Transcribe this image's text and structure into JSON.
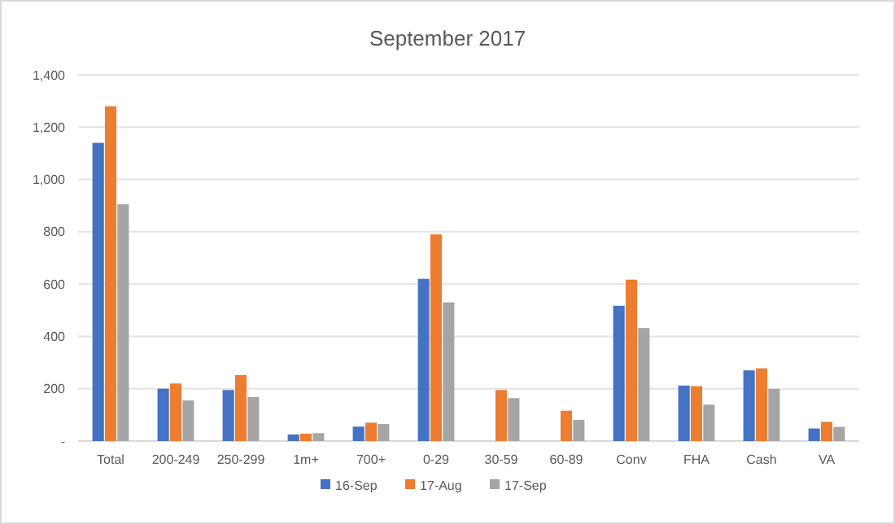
{
  "chart_data": {
    "type": "bar",
    "title": "September 2017",
    "categories": [
      "Total",
      "200-249",
      "250-299",
      "1m+",
      "700+",
      "0-29",
      "30-59",
      "60-89",
      "Conv",
      "FHA",
      "Cash",
      "VA"
    ],
    "series": [
      {
        "name": "16-Sep",
        "color": "#4472c4",
        "values": [
          1140,
          200,
          195,
          25,
          55,
          620,
          null,
          null,
          517,
          212,
          270,
          48
        ]
      },
      {
        "name": "17-Aug",
        "color": "#ed7d31",
        "values": [
          1280,
          220,
          252,
          28,
          70,
          790,
          195,
          116,
          617,
          210,
          278,
          73
        ]
      },
      {
        "name": "17-Sep",
        "color": "#a5a5a5",
        "values": [
          905,
          155,
          168,
          30,
          65,
          530,
          164,
          81,
          432,
          139,
          199,
          54
        ]
      }
    ],
    "ylim": [
      0,
      1400
    ],
    "yticks": [
      {
        "value": 0,
        "label": "-"
      },
      {
        "value": 200,
        "label": "200"
      },
      {
        "value": 400,
        "label": "400"
      },
      {
        "value": 600,
        "label": "600"
      },
      {
        "value": 800,
        "label": "800"
      },
      {
        "value": 1000,
        "label": "1,000"
      },
      {
        "value": 1200,
        "label": "1,200"
      },
      {
        "value": 1400,
        "label": "1,400"
      }
    ],
    "grid": "y",
    "legend": "bottom"
  }
}
